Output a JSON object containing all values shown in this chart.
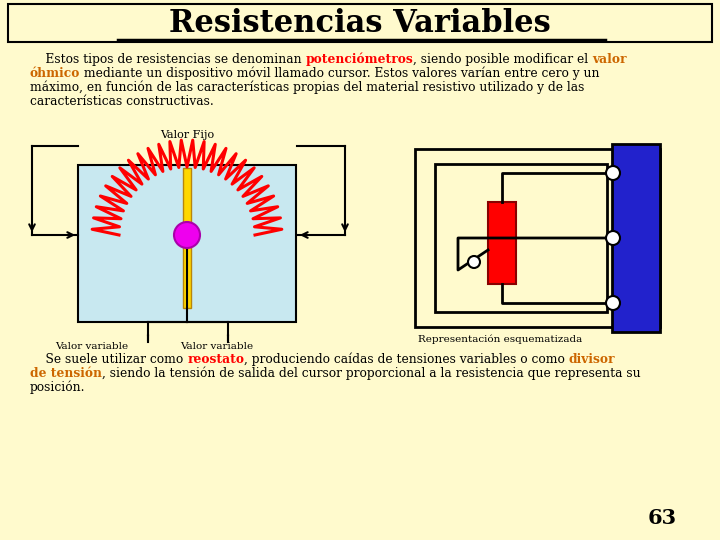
{
  "title": "Resistencias Variables",
  "bg_color": "#FFFACD",
  "title_underline": true,
  "para1_line1_black1": "    Estos tipos de resistencias se denominan ",
  "para1_line1_red": "potenciómetros",
  "para1_line1_black2": ", siendo posible modificar el ",
  "para1_line1_orange": "valor",
  "para1_line2_orange": "óhmico",
  "para1_line2_black": " mediante un dispositivo móvil llamado cursor. Estos valores varían entre cero y un",
  "para1_line3": "máximo, en función de las características propias del material resistivo utilizado y de las",
  "para1_line4": "características constructivas.",
  "valor_fijo_label": "Valor Fijo",
  "valor_variable_left": "Valor variable",
  "valor_variable_right": "Valor variable",
  "rep_label": "Representación esquematizada",
  "para2_black1": "    Se suele utilizar como ",
  "para2_red": "reostato",
  "para2_black2": ", produciendo caídas de tensiones variables o como ",
  "para2_orange": "divisor",
  "para2_line2_orange": "de tensión",
  "para2_line2_black": ", siendo la tensión de salida del cursor proporcional a la resistencia que representa su",
  "para2_line3": "posición.",
  "page_number": "63",
  "red_color": "#FF0000",
  "orange_color": "#CC6600",
  "light_blue": "#C8E8F0",
  "yellow_bg": "#FFFACD",
  "blue_panel": "#2222CC",
  "magenta": "#EE00EE",
  "gold": "#FFD700"
}
